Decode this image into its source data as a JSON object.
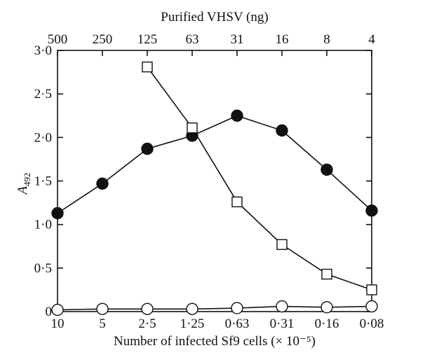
{
  "chart_data": {
    "type": "line",
    "title": "",
    "xlabel": "Number of infected Sf9 cells (× 10⁻⁵)",
    "x2label": "Purified VHSV (ng)",
    "ylabel_main": "A",
    "ylabel_sub": "492",
    "x_tick_labels": [
      "10",
      "5",
      "2·5",
      "1·25",
      "0·63",
      "0·31",
      "0·16",
      "0·08"
    ],
    "x2_tick_labels": [
      "500",
      "250",
      "125",
      "63",
      "31",
      "16",
      "8",
      "4"
    ],
    "y_ticks": [
      0,
      0.5,
      1.0,
      1.5,
      2.0,
      2.5,
      3.0
    ],
    "y_tick_labels": [
      "0",
      "0·5",
      "1·0",
      "1·5",
      "2·0",
      "2·5",
      "3·0"
    ],
    "ylim": [
      0,
      3.0
    ],
    "grid": false,
    "series": [
      {
        "marker": "filled-circle",
        "x_index": [
          0,
          1,
          2,
          3,
          4,
          5,
          6,
          7
        ],
        "values": [
          1.13,
          1.47,
          1.87,
          2.02,
          2.25,
          2.08,
          1.63,
          1.16
        ]
      },
      {
        "marker": "open-square",
        "x_index": [
          2,
          3,
          4,
          5,
          6,
          7
        ],
        "values": [
          2.81,
          2.11,
          1.26,
          0.77,
          0.43,
          0.25
        ]
      },
      {
        "marker": "open-circle",
        "x_index": [
          0,
          1,
          2,
          3,
          4,
          5,
          6,
          7
        ],
        "values": [
          0.02,
          0.03,
          0.03,
          0.03,
          0.04,
          0.06,
          0.05,
          0.06
        ]
      }
    ]
  }
}
